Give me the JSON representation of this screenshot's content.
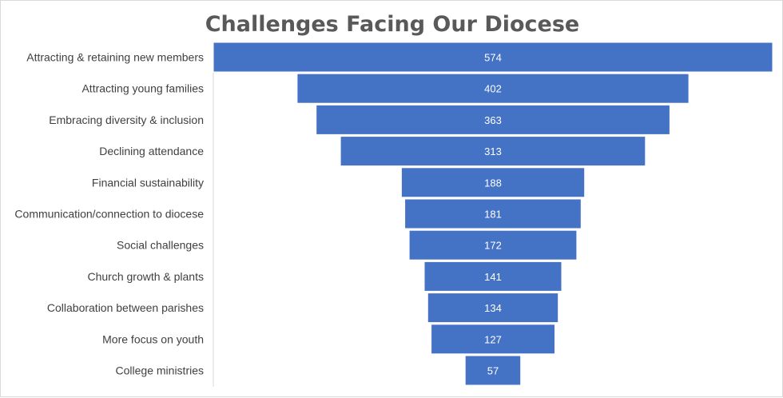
{
  "chart_data": {
    "type": "bar",
    "subtype": "funnel",
    "title": "Challenges Facing Our Diocese",
    "categories": [
      "Attracting & retaining new members",
      "Attracting young families",
      "Embracing diversity & inclusion",
      "Declining attendance",
      "Financial sustainability",
      "Communication/connection to diocese",
      "Social challenges",
      "Church growth & plants",
      "Collaboration between parishes",
      "More focus on youth",
      "College ministries"
    ],
    "values": [
      574,
      402,
      363,
      313,
      188,
      181,
      172,
      141,
      134,
      127,
      57
    ],
    "data_labels": [
      "574",
      "402",
      "363",
      "313",
      "188",
      "181",
      "172",
      "141",
      "134",
      "127",
      "57"
    ],
    "xlabel": "",
    "ylabel": "",
    "grid": false,
    "legend": "none",
    "colors": {
      "bar": "#4472c4",
      "title": "#595959",
      "label": "#404040",
      "bar_label": "#ffffff"
    }
  }
}
